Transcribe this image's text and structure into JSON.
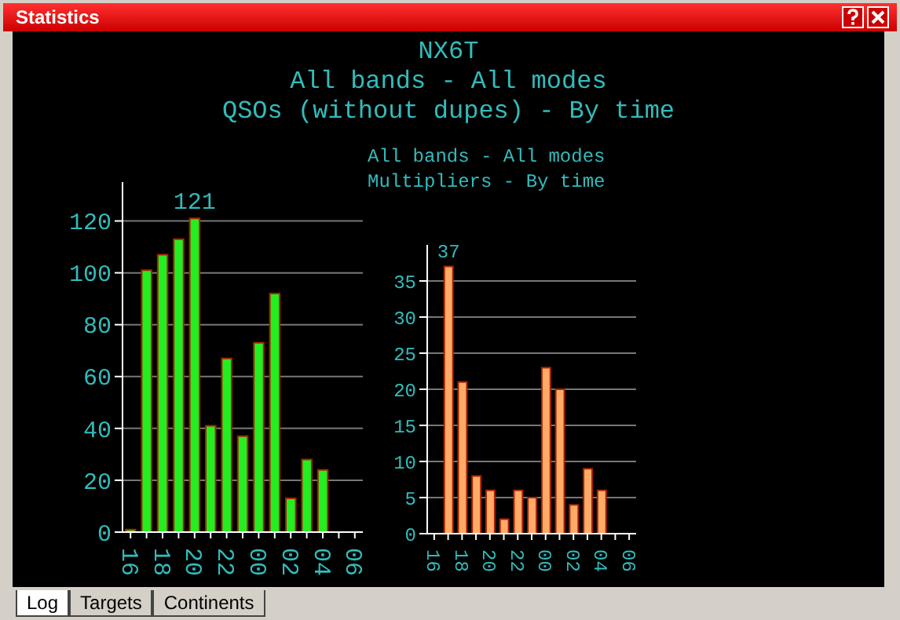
{
  "chart_data": [
    {
      "type": "other",
      "title": "NX6T",
      "subtitle": "All bands - All modes\nQSOs (without dupes) - By time",
      "annotations": [
        "Statistics",
        "Log",
        "Targets",
        "Continents"
      ]
    },
    {
      "type": "bar",
      "categories": [
        "16",
        null,
        "18",
        null,
        "20",
        null,
        "22",
        null,
        "00",
        null,
        "02",
        null,
        "04",
        null,
        "06"
      ],
      "values": [
        1,
        101,
        107,
        113,
        121,
        41,
        67,
        37,
        73,
        92,
        13,
        28,
        24,
        null,
        null
      ],
      "value_labels": [
        null,
        null,
        null,
        null,
        "121",
        null,
        null,
        null,
        null,
        null,
        null,
        null,
        null,
        null,
        null
      ],
      "color": "#22ee22",
      "ylim": [
        0,
        135
      ],
      "yticks": [
        0,
        20,
        40,
        60,
        80,
        100,
        120
      ],
      "grid": "y"
    },
    {
      "type": "bar",
      "title": "All bands - All modes\nMultipliers - By time",
      "categories": [
        "16",
        null,
        "18",
        null,
        "20",
        null,
        "22",
        null,
        "00",
        null,
        "02",
        null,
        "04",
        null,
        "06"
      ],
      "values": [
        null,
        37,
        21,
        8,
        6,
        2,
        6,
        5,
        23,
        20,
        4,
        9,
        6,
        null,
        null
      ],
      "value_labels": [
        null,
        "37",
        null,
        null,
        null,
        null,
        null,
        null,
        null,
        null,
        null,
        null,
        null,
        null,
        null
      ],
      "color": "#ffaa66",
      "ylim": [
        0,
        40
      ],
      "yticks": [
        0,
        5,
        10,
        15,
        20,
        25,
        30,
        35
      ],
      "grid": "y"
    }
  ]
}
